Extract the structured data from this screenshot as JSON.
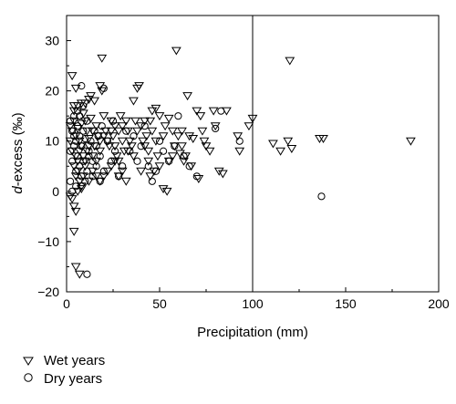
{
  "chart_data": {
    "type": "scatter",
    "xlabel": "Precipitation (mm)",
    "ylabel_italic": "d",
    "ylabel_rest": "-excess (‰)",
    "xlim": [
      0,
      200
    ],
    "ylim": [
      -20,
      35
    ],
    "xticks": [
      "0",
      "50",
      "100",
      "150",
      "200"
    ],
    "yticks": [
      "−20",
      "−10",
      "0",
      "10",
      "20",
      "30"
    ],
    "reference_line_x": 100,
    "grid": false,
    "legend_placement": "bottom-left, below plot",
    "series": [
      {
        "name": "Wet years",
        "marker": "triangle-down",
        "points": [
          [
            3,
            23
          ],
          [
            5,
            20.5
          ],
          [
            4,
            16
          ],
          [
            6,
            17
          ],
          [
            8,
            17.5
          ],
          [
            10,
            17.5
          ],
          [
            12,
            18.3
          ],
          [
            13,
            19
          ],
          [
            15,
            18
          ],
          [
            19,
            26.5
          ],
          [
            18,
            21
          ],
          [
            19,
            20
          ],
          [
            2,
            13
          ],
          [
            3,
            12
          ],
          [
            4,
            14
          ],
          [
            5,
            11
          ],
          [
            6,
            12.5
          ],
          [
            7,
            10
          ],
          [
            8,
            13.5
          ],
          [
            9,
            15.5
          ],
          [
            10,
            14
          ],
          [
            11,
            12
          ],
          [
            12,
            10.5
          ],
          [
            13,
            14.5
          ],
          [
            14,
            12
          ],
          [
            15,
            9
          ],
          [
            16,
            13
          ],
          [
            17,
            11
          ],
          [
            18,
            8
          ],
          [
            20,
            15
          ],
          [
            21,
            12
          ],
          [
            22,
            10
          ],
          [
            23,
            9
          ],
          [
            24,
            14
          ],
          [
            25,
            11
          ],
          [
            26,
            13
          ],
          [
            27,
            7
          ],
          [
            28,
            12
          ],
          [
            29,
            15
          ],
          [
            30,
            10
          ],
          [
            31,
            8
          ],
          [
            32,
            14
          ],
          [
            33,
            12
          ],
          [
            34,
            10
          ],
          [
            35,
            9
          ],
          [
            36,
            18
          ],
          [
            37,
            14
          ],
          [
            38,
            20.5
          ],
          [
            39,
            21
          ],
          [
            40,
            13
          ],
          [
            41,
            10
          ],
          [
            42,
            9
          ],
          [
            43,
            11
          ],
          [
            44,
            6
          ],
          [
            45,
            14
          ],
          [
            46,
            16
          ],
          [
            47,
            4
          ],
          [
            48,
            16.5
          ],
          [
            50,
            15
          ],
          [
            52,
            11
          ],
          [
            53,
            13
          ],
          [
            55,
            14.5
          ],
          [
            57,
            7
          ],
          [
            59,
            28
          ],
          [
            60,
            11
          ],
          [
            62,
            12
          ],
          [
            63,
            6
          ],
          [
            64,
            7
          ],
          [
            65,
            19
          ],
          [
            67,
            5
          ],
          [
            70,
            16
          ],
          [
            72,
            15
          ],
          [
            73,
            12
          ],
          [
            75,
            9
          ],
          [
            77,
            8
          ],
          [
            79,
            16
          ],
          [
            80,
            13
          ],
          [
            82,
            4
          ],
          [
            84,
            3.5
          ],
          [
            86,
            16
          ],
          [
            92,
            11
          ],
          [
            93,
            8
          ],
          [
            98,
            13
          ],
          [
            100,
            14.5
          ],
          [
            111,
            9.5
          ],
          [
            115,
            8
          ],
          [
            119,
            10
          ],
          [
            120,
            26
          ],
          [
            121,
            8.5
          ],
          [
            136,
            10.5
          ],
          [
            138,
            10.5
          ],
          [
            185,
            10
          ],
          [
            4,
            5
          ],
          [
            5,
            3
          ],
          [
            6,
            4
          ],
          [
            7,
            2
          ],
          [
            8,
            1
          ],
          [
            9,
            3
          ],
          [
            10,
            5
          ],
          [
            12,
            2
          ],
          [
            14,
            4
          ],
          [
            16,
            3
          ],
          [
            18,
            2
          ],
          [
            20,
            3
          ],
          [
            22,
            4
          ],
          [
            24,
            5
          ],
          [
            26,
            6
          ],
          [
            28,
            3
          ],
          [
            30,
            4
          ],
          [
            32,
            2
          ],
          [
            3,
            -1.5
          ],
          [
            4,
            -3
          ],
          [
            5,
            -4
          ],
          [
            4,
            -8
          ],
          [
            5,
            -15
          ],
          [
            7,
            -16.5
          ],
          [
            2,
            -1
          ],
          [
            6,
            0
          ],
          [
            8,
            0.5
          ],
          [
            40,
            4
          ],
          [
            45,
            3
          ],
          [
            50,
            5
          ],
          [
            52,
            0.5
          ],
          [
            54,
            0
          ],
          [
            58,
            9
          ],
          [
            61,
            7.5
          ],
          [
            66,
            11
          ],
          [
            68,
            10.5
          ],
          [
            71,
            2.5
          ],
          [
            74,
            10
          ],
          [
            5,
            7
          ],
          [
            6,
            6
          ],
          [
            7,
            8
          ],
          [
            8,
            9
          ],
          [
            9,
            7
          ],
          [
            10,
            6
          ],
          [
            11,
            8
          ],
          [
            12,
            9
          ],
          [
            14,
            7
          ],
          [
            16,
            6
          ],
          [
            18,
            10
          ],
          [
            20,
            11
          ],
          [
            24,
            12
          ],
          [
            26,
            9
          ],
          [
            28,
            6
          ],
          [
            30,
            13
          ],
          [
            33,
            8
          ],
          [
            36,
            7
          ],
          [
            38,
            12
          ],
          [
            42,
            14
          ],
          [
            44,
            8
          ],
          [
            46,
            12
          ],
          [
            48,
            10
          ],
          [
            49,
            7
          ],
          [
            55,
            6
          ],
          [
            57,
            12
          ],
          [
            62,
            9
          ],
          [
            3,
            8
          ],
          [
            2,
            10
          ],
          [
            4,
            17
          ]
        ]
      },
      {
        "name": "Dry years",
        "marker": "circle",
        "points": [
          [
            2,
            14
          ],
          [
            3,
            12
          ],
          [
            4,
            15
          ],
          [
            5,
            10
          ],
          [
            6,
            13
          ],
          [
            7,
            11
          ],
          [
            8,
            9
          ],
          [
            9,
            12
          ],
          [
            10,
            10.5
          ],
          [
            11,
            14
          ],
          [
            12,
            8
          ],
          [
            13,
            10
          ],
          [
            14,
            6
          ],
          [
            15,
            12
          ],
          [
            16,
            9
          ],
          [
            17,
            11
          ],
          [
            18,
            7
          ],
          [
            19,
            13
          ],
          [
            20,
            20.5
          ],
          [
            8,
            21
          ],
          [
            2,
            8
          ],
          [
            3,
            6
          ],
          [
            4,
            9
          ],
          [
            5,
            4
          ],
          [
            6,
            7
          ],
          [
            7,
            5
          ],
          [
            8,
            3
          ],
          [
            9,
            6
          ],
          [
            10,
            2
          ],
          [
            11,
            4
          ],
          [
            12,
            7
          ],
          [
            14,
            3
          ],
          [
            16,
            5
          ],
          [
            18,
            2
          ],
          [
            20,
            4
          ],
          [
            22,
            10
          ],
          [
            24,
            6
          ],
          [
            26,
            8
          ],
          [
            28,
            3
          ],
          [
            30,
            5
          ],
          [
            32,
            12
          ],
          [
            34,
            8
          ],
          [
            36,
            11
          ],
          [
            38,
            6
          ],
          [
            40,
            9
          ],
          [
            42,
            13
          ],
          [
            44,
            5
          ],
          [
            46,
            2
          ],
          [
            48,
            4
          ],
          [
            50,
            10
          ],
          [
            52,
            8
          ],
          [
            55,
            6
          ],
          [
            58,
            9
          ],
          [
            60,
            15
          ],
          [
            63,
            7
          ],
          [
            66,
            5
          ],
          [
            70,
            3
          ],
          [
            80,
            12.5
          ],
          [
            83,
            16
          ],
          [
            93,
            10
          ],
          [
            137,
            -1
          ],
          [
            11,
            -16.5
          ],
          [
            3,
            0
          ],
          [
            5,
            1
          ],
          [
            7,
            15
          ],
          [
            9,
            17
          ],
          [
            2,
            2
          ],
          [
            4,
            11
          ],
          [
            6,
            16
          ],
          [
            25,
            14
          ]
        ]
      }
    ]
  }
}
